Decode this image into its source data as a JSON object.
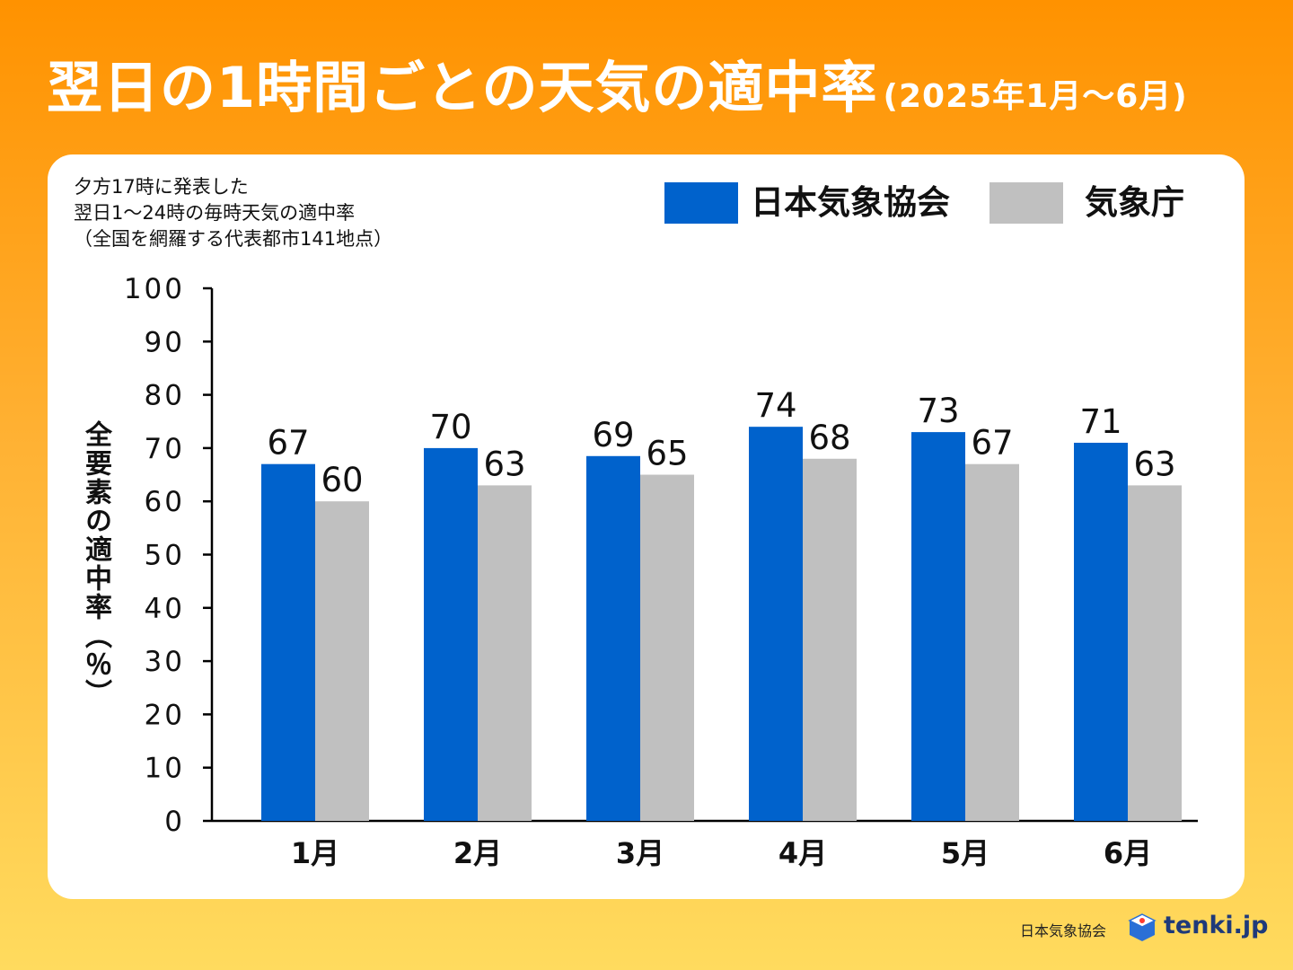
{
  "title": "翌日の1時間ごとの天気の適中率",
  "title_period": "(2025年1月〜6月)",
  "note_lines": [
    "夕方17時に発表した",
    "翌日1〜24時の毎時天気の適中率",
    "（全国を網羅する代表都市141地点）"
  ],
  "footer": {
    "org": "日本気象協会",
    "brand": "tenki.jp"
  },
  "colors": {
    "jwa": "#0062cc",
    "jma": "#c0c0c0",
    "accent": "#ff9200"
  },
  "chart_data": {
    "type": "bar",
    "categories": [
      "1月",
      "2月",
      "3月",
      "4月",
      "5月",
      "6月"
    ],
    "series": [
      {
        "name": "日本気象協会",
        "values": [
          67,
          70,
          69,
          74,
          73,
          71
        ],
        "labels": [
          "67",
          "70",
          "69",
          "74",
          "73",
          "71"
        ]
      },
      {
        "name": "気象庁",
        "values": [
          60,
          63,
          65,
          68,
          67,
          63
        ],
        "labels": [
          "60",
          "63",
          "65",
          "68",
          "67",
          "63"
        ]
      }
    ],
    "plotted": [
      [
        67,
        70,
        68.5,
        74,
        73,
        71
      ],
      [
        60,
        63,
        65,
        68,
        67,
        63
      ]
    ],
    "ylabel": "全要素の適中率（％）",
    "ylim": [
      0,
      100
    ],
    "yticks": [
      "0",
      "10",
      "20",
      "30",
      "40",
      "50",
      "60",
      "70",
      "80",
      "90",
      "100"
    ],
    "legend": "top-right",
    "grid": false
  }
}
